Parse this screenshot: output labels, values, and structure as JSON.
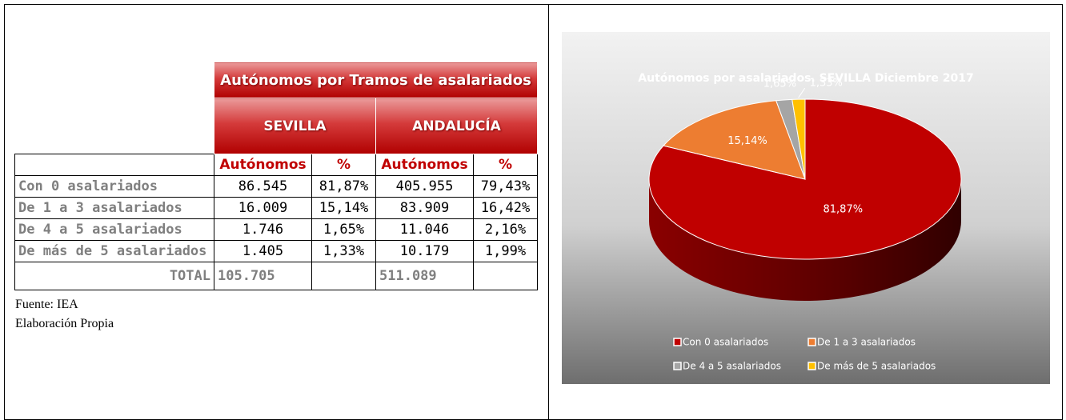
{
  "table": {
    "title": "Autónomos por Tramos de asalariados",
    "groups": [
      "SEVILLA",
      "ANDALUCÍA"
    ],
    "columns": [
      "Autónomos",
      "%",
      "Autónomos",
      "%"
    ],
    "rows": [
      [
        "Con 0 asalariados",
        "86.545",
        "81,87%",
        "405.955",
        "79,43%"
      ],
      [
        "De 1 a 3 asalariados",
        "16.009",
        "15,14%",
        "83.909",
        "16,42%"
      ],
      [
        "De 4 a 5 asalariados",
        "1.746",
        "1,65%",
        "11.046",
        "2,16%"
      ],
      [
        "De más de 5 asalariados",
        "1.405",
        "1,33%",
        "10.179",
        "1,99%"
      ]
    ],
    "total": [
      "TOTAL",
      "105.705",
      "511.089"
    ]
  },
  "notes": [
    "Fuente: IEA",
    "Elaboración Propia"
  ],
  "chart_data": {
    "type": "pie",
    "title": "Autónomos por asalariados.  SEVILLA Diciembre 2017",
    "categories": [
      "Con 0 asalariados",
      "De 1 a 3 asalariados",
      "De 4 a 5 asalariados",
      "De más de 5 asalariados"
    ],
    "values": [
      81.87,
      15.14,
      1.65,
      1.33
    ],
    "value_labels": [
      "81,87%",
      "15,14%",
      "1,65%",
      "1,33%"
    ],
    "colors": [
      "#c00000",
      "#ed7d31",
      "#a5a5a5",
      "#ffc000"
    ],
    "legend": "bottom"
  }
}
